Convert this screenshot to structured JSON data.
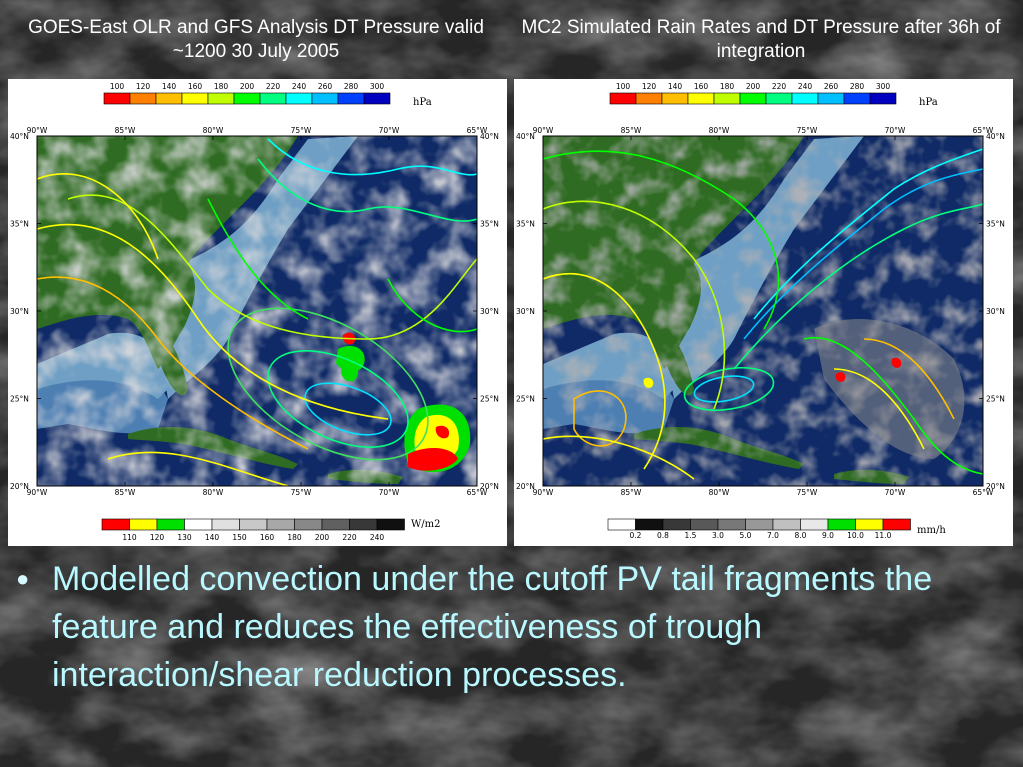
{
  "left_panel": {
    "title": "GOES-East OLR and GFS Analysis DT Pressure valid ~1200 30 July 2005",
    "pressure_colorbar": {
      "labels": [
        "100",
        "120",
        "140",
        "160",
        "180",
        "200",
        "220",
        "240",
        "260",
        "280",
        "300"
      ],
      "colors": [
        "#ff0000",
        "#ff7f00",
        "#ffbf00",
        "#ffff00",
        "#bfff00",
        "#00ff00",
        "#00ff80",
        "#00ffff",
        "#00bfff",
        "#0040ff",
        "#0000c0"
      ],
      "unit": "hPa"
    },
    "bottom_colorbar": {
      "labels": [
        "110",
        "120",
        "130",
        "140",
        "150",
        "160",
        "180",
        "200",
        "220",
        "240"
      ],
      "colors": [
        "#ff0000",
        "#ffff00",
        "#00e000",
        "#ffffff",
        "#e0e0e0",
        "#c8c8c8",
        "#a8a8a8",
        "#888888",
        "#606060",
        "#383838",
        "#101010"
      ],
      "unit": "W/m2"
    }
  },
  "right_panel": {
    "title": "MC2 Simulated Rain Rates and DT Pressure after 36h of integration",
    "pressure_colorbar": {
      "labels": [
        "100",
        "120",
        "140",
        "160",
        "180",
        "200",
        "220",
        "240",
        "260",
        "280",
        "300"
      ],
      "colors": [
        "#ff0000",
        "#ff7f00",
        "#ffbf00",
        "#ffff00",
        "#bfff00",
        "#00ff00",
        "#00ff80",
        "#00ffff",
        "#00bfff",
        "#0040ff",
        "#0000c0"
      ],
      "unit": "hPa"
    },
    "bottom_colorbar": {
      "labels": [
        "0.2",
        "0.8",
        "1.5",
        "3.0",
        "5.0",
        "7.0",
        "8.0",
        "9.0",
        "10.0",
        "11.0"
      ],
      "colors": [
        "#ffffff",
        "#101010",
        "#383838",
        "#585858",
        "#787878",
        "#989898",
        "#c0c0c0",
        "#e8e8e8",
        "#00e000",
        "#ffff00",
        "#ff0000"
      ],
      "unit": "mm/h"
    }
  },
  "map_axes": {
    "lon_labels": [
      "90°W",
      "85°W",
      "80°W",
      "75°W",
      "70°W",
      "65°W"
    ],
    "lat_labels": [
      "40°N",
      "35°N",
      "30°N",
      "25°N",
      "20°N"
    ]
  },
  "bullet_text": "Modelled convection under the cutoff PV tail fragments the feature and reduces the effectiveness of trough interaction/shear reduction processes.",
  "colors": {
    "background": "#2a2a2a",
    "title_text": "#ffffff",
    "bullet_text": "#b9f8ff",
    "land": "#2f6b22",
    "shelf": "#6f9fc4",
    "deep_ocean": "#0f2a66"
  }
}
